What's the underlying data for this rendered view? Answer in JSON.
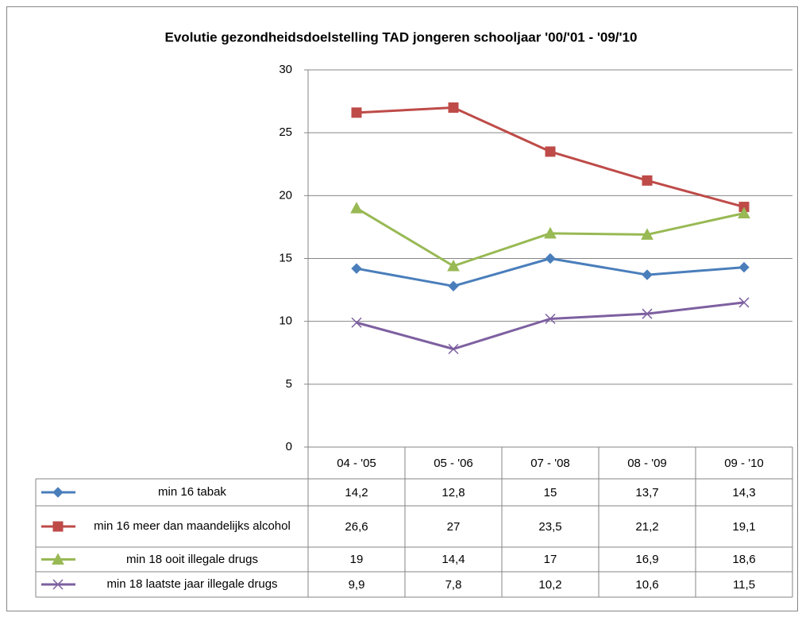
{
  "chart_data": {
    "type": "line",
    "title": "Evolutie gezondheidsdoelstelling TAD jongeren schooljaar '00/'01 - '09/'10",
    "categories": [
      "04 - '05",
      "05 - '06",
      "07 - '08",
      "08 - '09",
      "09 - '10"
    ],
    "series": [
      {
        "name": "min 16 tabak",
        "color": "#4a7ebb",
        "marker": "diamond",
        "values": [
          14.2,
          12.8,
          15,
          13.7,
          14.3
        ],
        "value_labels": [
          "14,2",
          "12,8",
          "15",
          "13,7",
          "14,3"
        ]
      },
      {
        "name": "min 16 meer dan maandelijks alcohol",
        "color": "#be4b48",
        "marker": "square",
        "values": [
          26.6,
          27,
          23.5,
          21.2,
          19.1
        ],
        "value_labels": [
          "26,6",
          "27",
          "23,5",
          "21,2",
          "19,1"
        ]
      },
      {
        "name": "min 18 ooit illegale drugs",
        "color": "#98b954",
        "marker": "triangle",
        "values": [
          19,
          14.4,
          17,
          16.9,
          18.6
        ],
        "value_labels": [
          "19",
          "14,4",
          "17",
          "16,9",
          "18,6"
        ]
      },
      {
        "name": "min 18 laatste jaar illegale drugs",
        "color": "#7d60a0",
        "marker": "x",
        "values": [
          9.9,
          7.8,
          10.2,
          10.6,
          11.5
        ],
        "value_labels": [
          "9,9",
          "7,8",
          "10,2",
          "10,6",
          "11,5"
        ]
      }
    ],
    "ylim": [
      0,
      30
    ],
    "yticks": [
      0,
      5,
      10,
      15,
      20,
      25,
      30
    ],
    "grid": true
  }
}
